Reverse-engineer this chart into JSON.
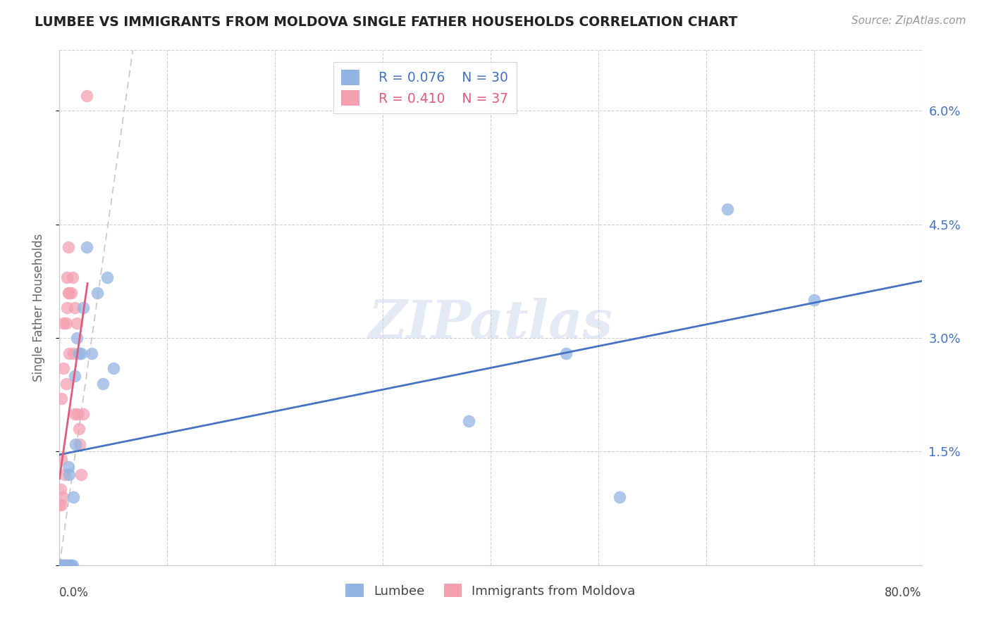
{
  "title": "LUMBEE VS IMMIGRANTS FROM MOLDOVA SINGLE FATHER HOUSEHOLDS CORRELATION CHART",
  "source": "Source: ZipAtlas.com",
  "ylabel": "Single Father Households",
  "yticks": [
    0.0,
    0.015,
    0.03,
    0.045,
    0.06
  ],
  "ytick_labels": [
    "",
    "1.5%",
    "3.0%",
    "4.5%",
    "6.0%"
  ],
  "xlim": [
    0.0,
    0.8
  ],
  "ylim": [
    0.0,
    0.068
  ],
  "legend_lumbee_R": "R = 0.076",
  "legend_lumbee_N": "N = 30",
  "legend_moldova_R": "R = 0.410",
  "legend_moldova_N": "N = 37",
  "lumbee_color": "#92b4e3",
  "moldova_color": "#f4a0b0",
  "lumbee_line_color": "#4472c4",
  "moldova_line_color": "#e05c78",
  "watermark": "ZIPatlas",
  "lumbee_x": [
    0.001,
    0.002,
    0.003,
    0.004,
    0.005,
    0.006,
    0.007,
    0.008,
    0.009,
    0.01,
    0.011,
    0.012,
    0.013,
    0.014,
    0.015,
    0.016,
    0.018,
    0.02,
    0.022,
    0.025,
    0.03,
    0.035,
    0.04,
    0.044,
    0.05,
    0.38,
    0.47,
    0.52,
    0.62,
    0.7
  ],
  "lumbee_y": [
    0.0,
    0.0,
    0.0,
    0.0,
    0.0,
    0.0,
    0.0,
    0.013,
    0.012,
    0.0,
    0.0,
    0.0,
    0.009,
    0.025,
    0.016,
    0.03,
    0.028,
    0.028,
    0.034,
    0.042,
    0.028,
    0.036,
    0.024,
    0.038,
    0.026,
    0.019,
    0.028,
    0.009,
    0.047,
    0.035
  ],
  "moldova_x": [
    0.0,
    0.0,
    0.001,
    0.001,
    0.002,
    0.002,
    0.002,
    0.003,
    0.003,
    0.004,
    0.004,
    0.005,
    0.005,
    0.006,
    0.006,
    0.006,
    0.007,
    0.007,
    0.008,
    0.008,
    0.008,
    0.009,
    0.009,
    0.01,
    0.01,
    0.011,
    0.012,
    0.013,
    0.014,
    0.014,
    0.016,
    0.017,
    0.018,
    0.019,
    0.02,
    0.022,
    0.025
  ],
  "moldova_y": [
    0.0,
    0.008,
    0.0,
    0.01,
    0.008,
    0.014,
    0.022,
    0.009,
    0.0,
    0.032,
    0.026,
    0.0,
    0.012,
    0.0,
    0.024,
    0.032,
    0.034,
    0.038,
    0.0,
    0.036,
    0.042,
    0.028,
    0.036,
    0.0,
    0.0,
    0.036,
    0.038,
    0.028,
    0.034,
    0.02,
    0.032,
    0.02,
    0.018,
    0.016,
    0.012,
    0.02,
    0.062
  ]
}
